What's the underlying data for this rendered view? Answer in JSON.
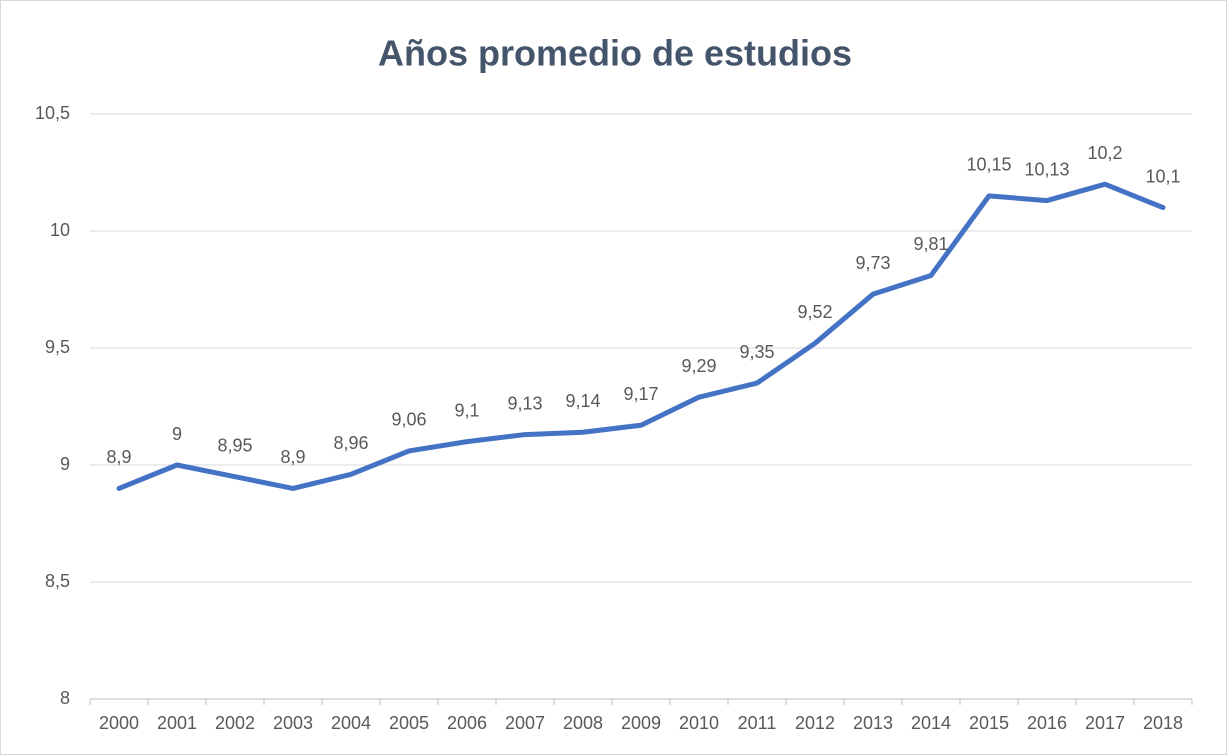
{
  "chart_data": {
    "type": "line",
    "title": "Años promedio de estudios",
    "categories": [
      "2000",
      "2001",
      "2002",
      "2003",
      "2004",
      "2005",
      "2006",
      "2007",
      "2008",
      "2009",
      "2010",
      "2011",
      "2012",
      "2013",
      "2014",
      "2015",
      "2016",
      "2017",
      "2018"
    ],
    "series": [
      {
        "name": "Años promedio de estudios",
        "color": "#4472c4",
        "values": [
          8.9,
          9,
          8.95,
          8.9,
          8.96,
          9.06,
          9.1,
          9.13,
          9.14,
          9.17,
          9.29,
          9.35,
          9.52,
          9.73,
          9.81,
          10.15,
          10.13,
          10.2,
          10.1
        ],
        "value_labels": [
          "8,9",
          "9",
          "8,95",
          "8,9",
          "8,96",
          "9,06",
          "9,1",
          "9,13",
          "9,14",
          "9,17",
          "9,29",
          "9,35",
          "9,52",
          "9,73",
          "9,81",
          "10,15",
          "10,13",
          "10,2",
          "10,1"
        ]
      }
    ],
    "ylim": [
      8,
      10.5
    ],
    "yticks": [
      8,
      {
        "value": 8.5,
        "label": "8,5"
      },
      9,
      {
        "value": 9.5,
        "label": "9,5"
      },
      10,
      {
        "value": 10.5,
        "label": "10,5"
      }
    ],
    "grid": true
  }
}
